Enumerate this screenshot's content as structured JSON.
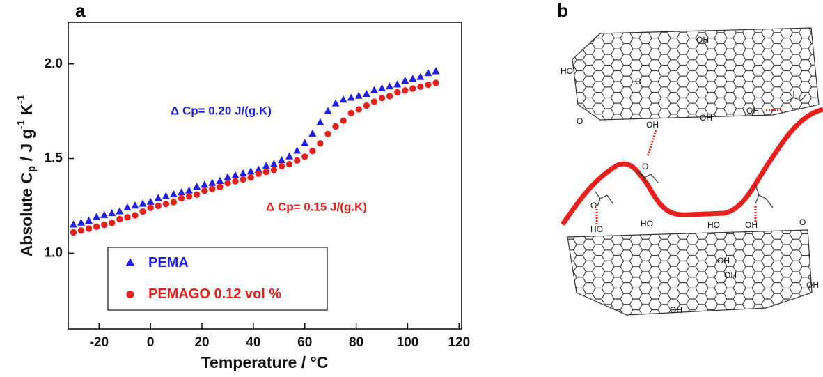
{
  "chart_data": {
    "type": "scatter",
    "panel_label": "a",
    "x_label": "Temperature / °C",
    "y_label": [
      "Absolute C",
      "p",
      " / J g",
      "-1",
      " K",
      "-1"
    ],
    "x": [
      -30,
      -27,
      -24,
      -21,
      -18,
      -15,
      -12,
      -9,
      -6,
      -3,
      0,
      3,
      6,
      9,
      12,
      15,
      18,
      21,
      24,
      27,
      30,
      33,
      36,
      39,
      42,
      45,
      48,
      51,
      54,
      57,
      60,
      63,
      66,
      69,
      72,
      75,
      78,
      81,
      84,
      87,
      90,
      93,
      96,
      99,
      102,
      105,
      108,
      111
    ],
    "series": [
      {
        "name": "PEMA",
        "color": "#1f1fe6",
        "marker": "triangle",
        "values": [
          1.15,
          1.16,
          1.17,
          1.19,
          1.2,
          1.21,
          1.22,
          1.24,
          1.25,
          1.26,
          1.27,
          1.29,
          1.3,
          1.31,
          1.32,
          1.33,
          1.35,
          1.36,
          1.37,
          1.38,
          1.4,
          1.41,
          1.42,
          1.43,
          1.44,
          1.46,
          1.47,
          1.49,
          1.51,
          1.54,
          1.58,
          1.63,
          1.69,
          1.75,
          1.79,
          1.81,
          1.82,
          1.83,
          1.84,
          1.86,
          1.87,
          1.88,
          1.89,
          1.91,
          1.92,
          1.93,
          1.95,
          1.96
        ]
      },
      {
        "name": "PEMAGO 0.12 vol %",
        "color": "#e8201c",
        "marker": "circle",
        "values": [
          1.11,
          1.12,
          1.13,
          1.14,
          1.15,
          1.16,
          1.18,
          1.19,
          1.2,
          1.22,
          1.24,
          1.25,
          1.26,
          1.27,
          1.29,
          1.3,
          1.31,
          1.33,
          1.34,
          1.35,
          1.37,
          1.38,
          1.39,
          1.4,
          1.42,
          1.43,
          1.44,
          1.46,
          1.47,
          1.49,
          1.51,
          1.54,
          1.58,
          1.63,
          1.67,
          1.7,
          1.74,
          1.76,
          1.78,
          1.8,
          1.82,
          1.83,
          1.85,
          1.86,
          1.87,
          1.88,
          1.89,
          1.9
        ]
      }
    ],
    "annotations": [
      "Δ Cp= 0.20 J/(g.K)",
      "Δ Cp= 0.15 J/(g.K)"
    ],
    "xlim": [
      -32,
      121
    ],
    "ylim": [
      0.6,
      2.22
    ],
    "xticks": [
      -20,
      0,
      20,
      40,
      60,
      80,
      100,
      120
    ],
    "yticks": [
      {
        "value": 1,
        "label": "1.0"
      },
      {
        "value": 1.5,
        "label": "1.5"
      },
      {
        "value": 2,
        "label": "2.0"
      }
    ],
    "legend": "lower left"
  },
  "diagram": {
    "panel_label": "b",
    "labels": [
      "OH",
      "HO",
      "O",
      "OH",
      "OH",
      "OH",
      "O",
      "O",
      "O",
      "HO",
      "HO",
      "HO",
      "OH",
      "O",
      "OH",
      "OH",
      "OH",
      "OH"
    ]
  }
}
